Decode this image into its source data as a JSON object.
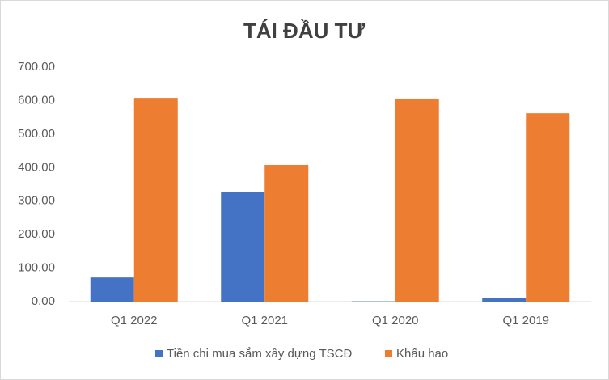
{
  "chart_data": {
    "type": "bar",
    "title": "TÁI ĐẦU TƯ",
    "categories": [
      "Q1 2022",
      "Q1 2021",
      "Q1 2020",
      "Q1 2019"
    ],
    "series": [
      {
        "name": "Tiền chi mua sắm xây dựng TSCĐ",
        "color": "#4472c4",
        "values": [
          72,
          328,
          1,
          12
        ]
      },
      {
        "name": "Khấu hao",
        "color": "#ed7d31",
        "values": [
          608,
          408,
          606,
          562
        ]
      }
    ],
    "ylim": [
      0,
      700
    ],
    "yticks": [
      {
        "value": 0,
        "label": "0.00"
      },
      {
        "value": 100,
        "label": "100.00"
      },
      {
        "value": 200,
        "label": "200.00"
      },
      {
        "value": 300,
        "label": "300.00"
      },
      {
        "value": 400,
        "label": "400.00"
      },
      {
        "value": 500,
        "label": "500.00"
      },
      {
        "value": 600,
        "label": "600.00"
      },
      {
        "value": 700,
        "label": "700.00"
      }
    ],
    "grid": false,
    "legend": "bottom"
  }
}
